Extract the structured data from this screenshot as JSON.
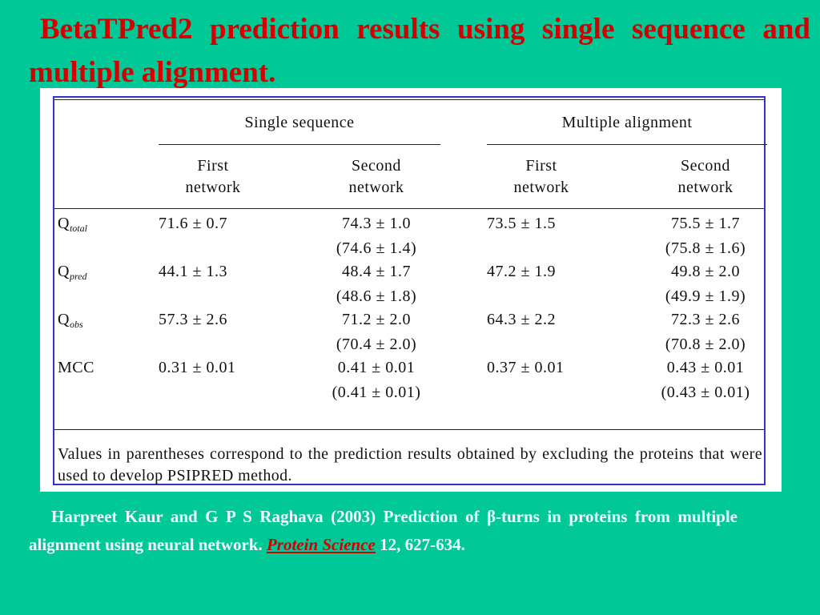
{
  "slide": {
    "title": "BetaTPred2 prediction results using single sequence and multiple alignment."
  },
  "table": {
    "group_headers": [
      "Single sequence",
      "Multiple alignment"
    ],
    "sub_headers": [
      [
        "First",
        "network"
      ],
      [
        "Second",
        "network"
      ],
      [
        "First",
        "network"
      ],
      [
        "Second",
        "network"
      ]
    ],
    "rows": [
      {
        "label": "Q",
        "label_sub": "total",
        "values": [
          [
            "71.6 ± 0.7"
          ],
          [
            "74.3 ± 1.0",
            "(74.6 ± 1.4)"
          ],
          [
            "73.5 ± 1.5"
          ],
          [
            "75.5 ± 1.7",
            "(75.8 ± 1.6)"
          ]
        ]
      },
      {
        "label": "Q",
        "label_sub": "pred",
        "values": [
          [
            "44.1 ± 1.3"
          ],
          [
            "48.4 ± 1.7",
            "(48.6 ± 1.8)"
          ],
          [
            "47.2 ± 1.9"
          ],
          [
            "49.8 ± 2.0",
            "(49.9 ± 1.9)"
          ]
        ]
      },
      {
        "label": "Q",
        "label_sub": "obs",
        "values": [
          [
            "57.3 ± 2.6"
          ],
          [
            "71.2 ± 2.0",
            "(70.4 ± 2.0)"
          ],
          [
            "64.3 ± 2.2"
          ],
          [
            "72.3 ± 2.6",
            "(70.8 ± 2.0)"
          ]
        ]
      },
      {
        "label": "MCC",
        "label_sub": "",
        "values": [
          [
            "0.31 ± 0.01"
          ],
          [
            "0.41 ± 0.01",
            "(0.41 ± 0.01)"
          ],
          [
            "0.37 ± 0.01"
          ],
          [
            "0.43 ± 0.01",
            "(0.43 ± 0.01)"
          ]
        ]
      }
    ],
    "footnote": "Values in parentheses correspond to the prediction results obtained by excluding the proteins that were used to develop PSIPRED method."
  },
  "citation": {
    "text": "Harpreet Kaur and G P S Raghava (2003) Prediction of β-turns in proteins from multiple alignment using neural network.",
    "journal": "Protein Science",
    "volume_pages": "12, 627-634."
  },
  "colors": {
    "background": "#00c896",
    "title": "#d40000",
    "table_border": "#3333cc",
    "citation_text": "#f0f8ff",
    "journal_link": "#d40000"
  }
}
